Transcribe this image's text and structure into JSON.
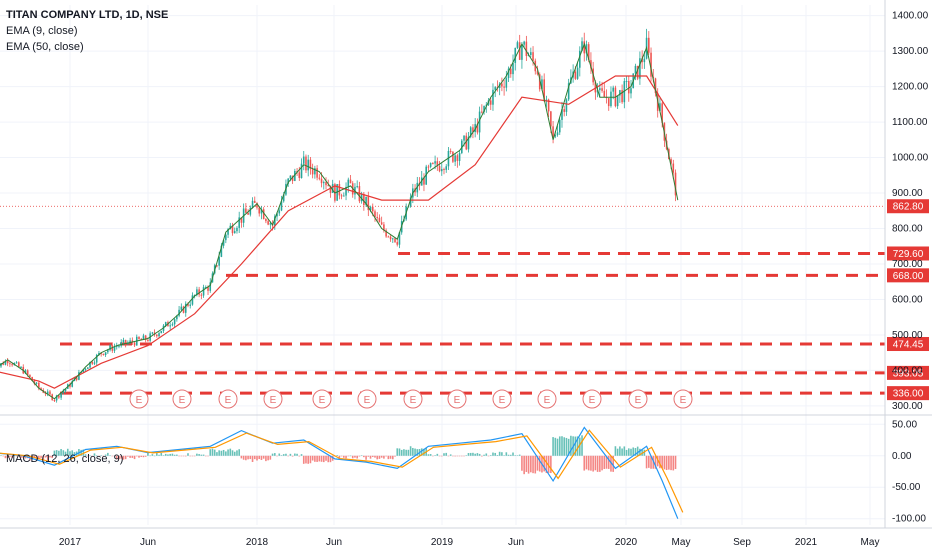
{
  "header": {
    "title": "TITAN COMPANY LTD, 1D, NSE",
    "ema9": "EMA (9, close)",
    "ema50": "EMA (50, close)"
  },
  "macd_panel": {
    "label": "MACD (12, 26, close, 9)"
  },
  "colors": {
    "up": "#26a69a",
    "down": "#ef5350",
    "ema9": "#2e7d32",
    "ema50": "#e53935",
    "macd": "#2196f3",
    "signal": "#ff9800",
    "level": "#e53935",
    "price_line": "#e53935",
    "earnings": "#e57373"
  },
  "chart_data": {
    "type": "candlestick",
    "title": "TITAN COMPANY LTD, 1D, NSE",
    "x_ticks": [
      "2017",
      "Jun",
      "2018",
      "Jun",
      "2019",
      "Jun",
      "2020",
      "May",
      "Sep",
      "2021",
      "May"
    ],
    "y_ticks": [
      "1400.00",
      "1300.00",
      "1200.00",
      "1100.00",
      "1000.00",
      "900.00",
      "800.00",
      "700.00",
      "600.00",
      "500.00",
      "400.00",
      "300.00"
    ],
    "ylim": [
      280,
      1430
    ],
    "last_price": "862.80",
    "levels": [
      {
        "value": 729.6,
        "label": "729.60"
      },
      {
        "value": 668.0,
        "label": "668.00"
      },
      {
        "value": 474.45,
        "label": "474.45"
      },
      {
        "value": 393.05,
        "label": "393.05"
      },
      {
        "value": 336.0,
        "label": "336.00"
      }
    ],
    "earnings_markers": [
      "E",
      "E",
      "E",
      "E",
      "E",
      "E",
      "E",
      "E",
      "E",
      "E",
      "E",
      "E",
      "E"
    ],
    "price_path": [
      [
        "2016-08",
        400
      ],
      [
        "2016-09",
        430
      ],
      [
        "2016-10",
        400
      ],
      [
        "2016-11",
        350
      ],
      [
        "2016-12",
        320
      ],
      [
        "2017-01",
        360
      ],
      [
        "2017-02",
        410
      ],
      [
        "2017-03",
        450
      ],
      [
        "2017-04",
        470
      ],
      [
        "2017-05",
        480
      ],
      [
        "2017-06",
        490
      ],
      [
        "2017-07",
        520
      ],
      [
        "2017-08",
        560
      ],
      [
        "2017-09",
        610
      ],
      [
        "2017-10",
        640
      ],
      [
        "2017-11",
        790
      ],
      [
        "2017-12",
        830
      ],
      [
        "2018-01",
        870
      ],
      [
        "2018-02",
        810
      ],
      [
        "2018-03",
        930
      ],
      [
        "2018-04",
        980
      ],
      [
        "2018-05",
        960
      ],
      [
        "2018-06",
        900
      ],
      [
        "2018-07",
        920
      ],
      [
        "2018-08",
        870
      ],
      [
        "2018-09",
        800
      ],
      [
        "2018-10",
        770
      ],
      [
        "2018-11",
        900
      ],
      [
        "2018-12",
        960
      ],
      [
        "2019-01",
        990
      ],
      [
        "2019-02",
        1020
      ],
      [
        "2019-03",
        1080
      ],
      [
        "2019-04",
        1170
      ],
      [
        "2019-05",
        1230
      ],
      [
        "2019-06",
        1320
      ],
      [
        "2019-07",
        1250
      ],
      [
        "2019-08",
        1050
      ],
      [
        "2019-09",
        1200
      ],
      [
        "2019-10",
        1320
      ],
      [
        "2019-11",
        1170
      ],
      [
        "2019-12",
        1170
      ],
      [
        "2020-01",
        1200
      ],
      [
        "2020-02",
        1310
      ],
      [
        "2020-03",
        1100
      ],
      [
        "2020-04",
        880
      ]
    ],
    "ema50_path": [
      [
        "2016-08",
        400
      ],
      [
        "2016-11",
        370
      ],
      [
        "2016-12",
        350
      ],
      [
        "2017-03",
        420
      ],
      [
        "2017-06",
        470
      ],
      [
        "2017-09",
        560
      ],
      [
        "2017-12",
        700
      ],
      [
        "2018-03",
        850
      ],
      [
        "2018-06",
        920
      ],
      [
        "2018-09",
        880
      ],
      [
        "2018-12",
        880
      ],
      [
        "2019-03",
        980
      ],
      [
        "2019-06",
        1170
      ],
      [
        "2019-09",
        1150
      ],
      [
        "2019-12",
        1230
      ],
      [
        "2020-02",
        1230
      ],
      [
        "2020-04",
        1090
      ]
    ],
    "macd_y_ticks": [
      "50.00",
      "0.00",
      "-50.00",
      "-100.00"
    ],
    "macd_ylim": [
      -110,
      60
    ],
    "macd_path": [
      [
        "2016-08",
        5
      ],
      [
        "2016-10",
        0
      ],
      [
        "2016-12",
        -15
      ],
      [
        "2017-02",
        10
      ],
      [
        "2017-04",
        15
      ],
      [
        "2017-06",
        5
      ],
      [
        "2017-08",
        10
      ],
      [
        "2017-10",
        15
      ],
      [
        "2017-12",
        40
      ],
      [
        "2018-02",
        20
      ],
      [
        "2018-04",
        25
      ],
      [
        "2018-06",
        -5
      ],
      [
        "2018-08",
        -10
      ],
      [
        "2018-10",
        -20
      ],
      [
        "2018-12",
        15
      ],
      [
        "2019-02",
        20
      ],
      [
        "2019-04",
        25
      ],
      [
        "2019-06",
        35
      ],
      [
        "2019-08",
        -40
      ],
      [
        "2019-10",
        45
      ],
      [
        "2019-12",
        -20
      ],
      [
        "2020-02",
        15
      ],
      [
        "2020-03",
        -40
      ],
      [
        "2020-04",
        -100
      ]
    ]
  }
}
